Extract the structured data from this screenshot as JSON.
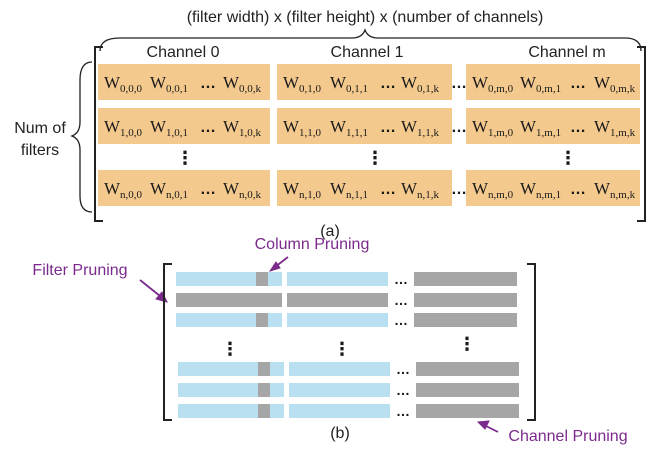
{
  "part_a": {
    "top_label": "(filter width) x (filter height) x (number of channels)",
    "left_label_line1": "Num of",
    "left_label_line2": "filters",
    "caption": "(a)",
    "channels": [
      {
        "label": "Channel 0"
      },
      {
        "label": "Channel 1"
      },
      {
        "label": "Channel m"
      }
    ],
    "rows": [
      [
        [
          {
            "w": "W",
            "s": "0,0,0"
          },
          {
            "w": "W",
            "s": "0,0,1"
          },
          {
            "w": "W",
            "s": "0,0,k"
          }
        ],
        [
          {
            "w": "W",
            "s": "0,1,0"
          },
          {
            "w": "W",
            "s": "0,1,1"
          },
          {
            "w": "W",
            "s": "0,1,k"
          }
        ],
        [
          {
            "w": "W",
            "s": "0,m,0"
          },
          {
            "w": "W",
            "s": "0,m,1"
          },
          {
            "w": "W",
            "s": "0,m,k"
          }
        ]
      ],
      [
        [
          {
            "w": "W",
            "s": "1,0,0"
          },
          {
            "w": "W",
            "s": "1,0,1"
          },
          {
            "w": "W",
            "s": "1,0,k"
          }
        ],
        [
          {
            "w": "W",
            "s": "1,1,0"
          },
          {
            "w": "W",
            "s": "1,1,1"
          },
          {
            "w": "W",
            "s": "1,1,k"
          }
        ],
        [
          {
            "w": "W",
            "s": "1,m,0"
          },
          {
            "w": "W",
            "s": "1,m,1"
          },
          {
            "w": "W",
            "s": "1,m,k"
          }
        ]
      ],
      [
        [
          {
            "w": "W",
            "s": "n,0,0"
          },
          {
            "w": "W",
            "s": "n,0,1"
          },
          {
            "w": "W",
            "s": "n,0,k"
          }
        ],
        [
          {
            "w": "W",
            "s": "n,1,0"
          },
          {
            "w": "W",
            "s": "n,1,1"
          },
          {
            "w": "W",
            "s": "n,1,k"
          }
        ],
        [
          {
            "w": "W",
            "s": "n,m,0"
          },
          {
            "w": "W",
            "s": "n,m,1"
          },
          {
            "w": "W",
            "s": "n,m,k"
          }
        ]
      ]
    ],
    "ellipsis_h": "…",
    "ellipsis_v": "⋮"
  },
  "part_b": {
    "caption": "(b)",
    "labels": {
      "column_pruning": "Column Pruning",
      "filter_pruning": "Filter Pruning",
      "channel_pruning": "Channel Pruning"
    }
  },
  "colors": {
    "weight_cell": "#f4c98e",
    "kept": "#b8e0f0",
    "pruned": "#a6a6a6",
    "annotation": "#7b2a8c",
    "line": "#222222"
  }
}
